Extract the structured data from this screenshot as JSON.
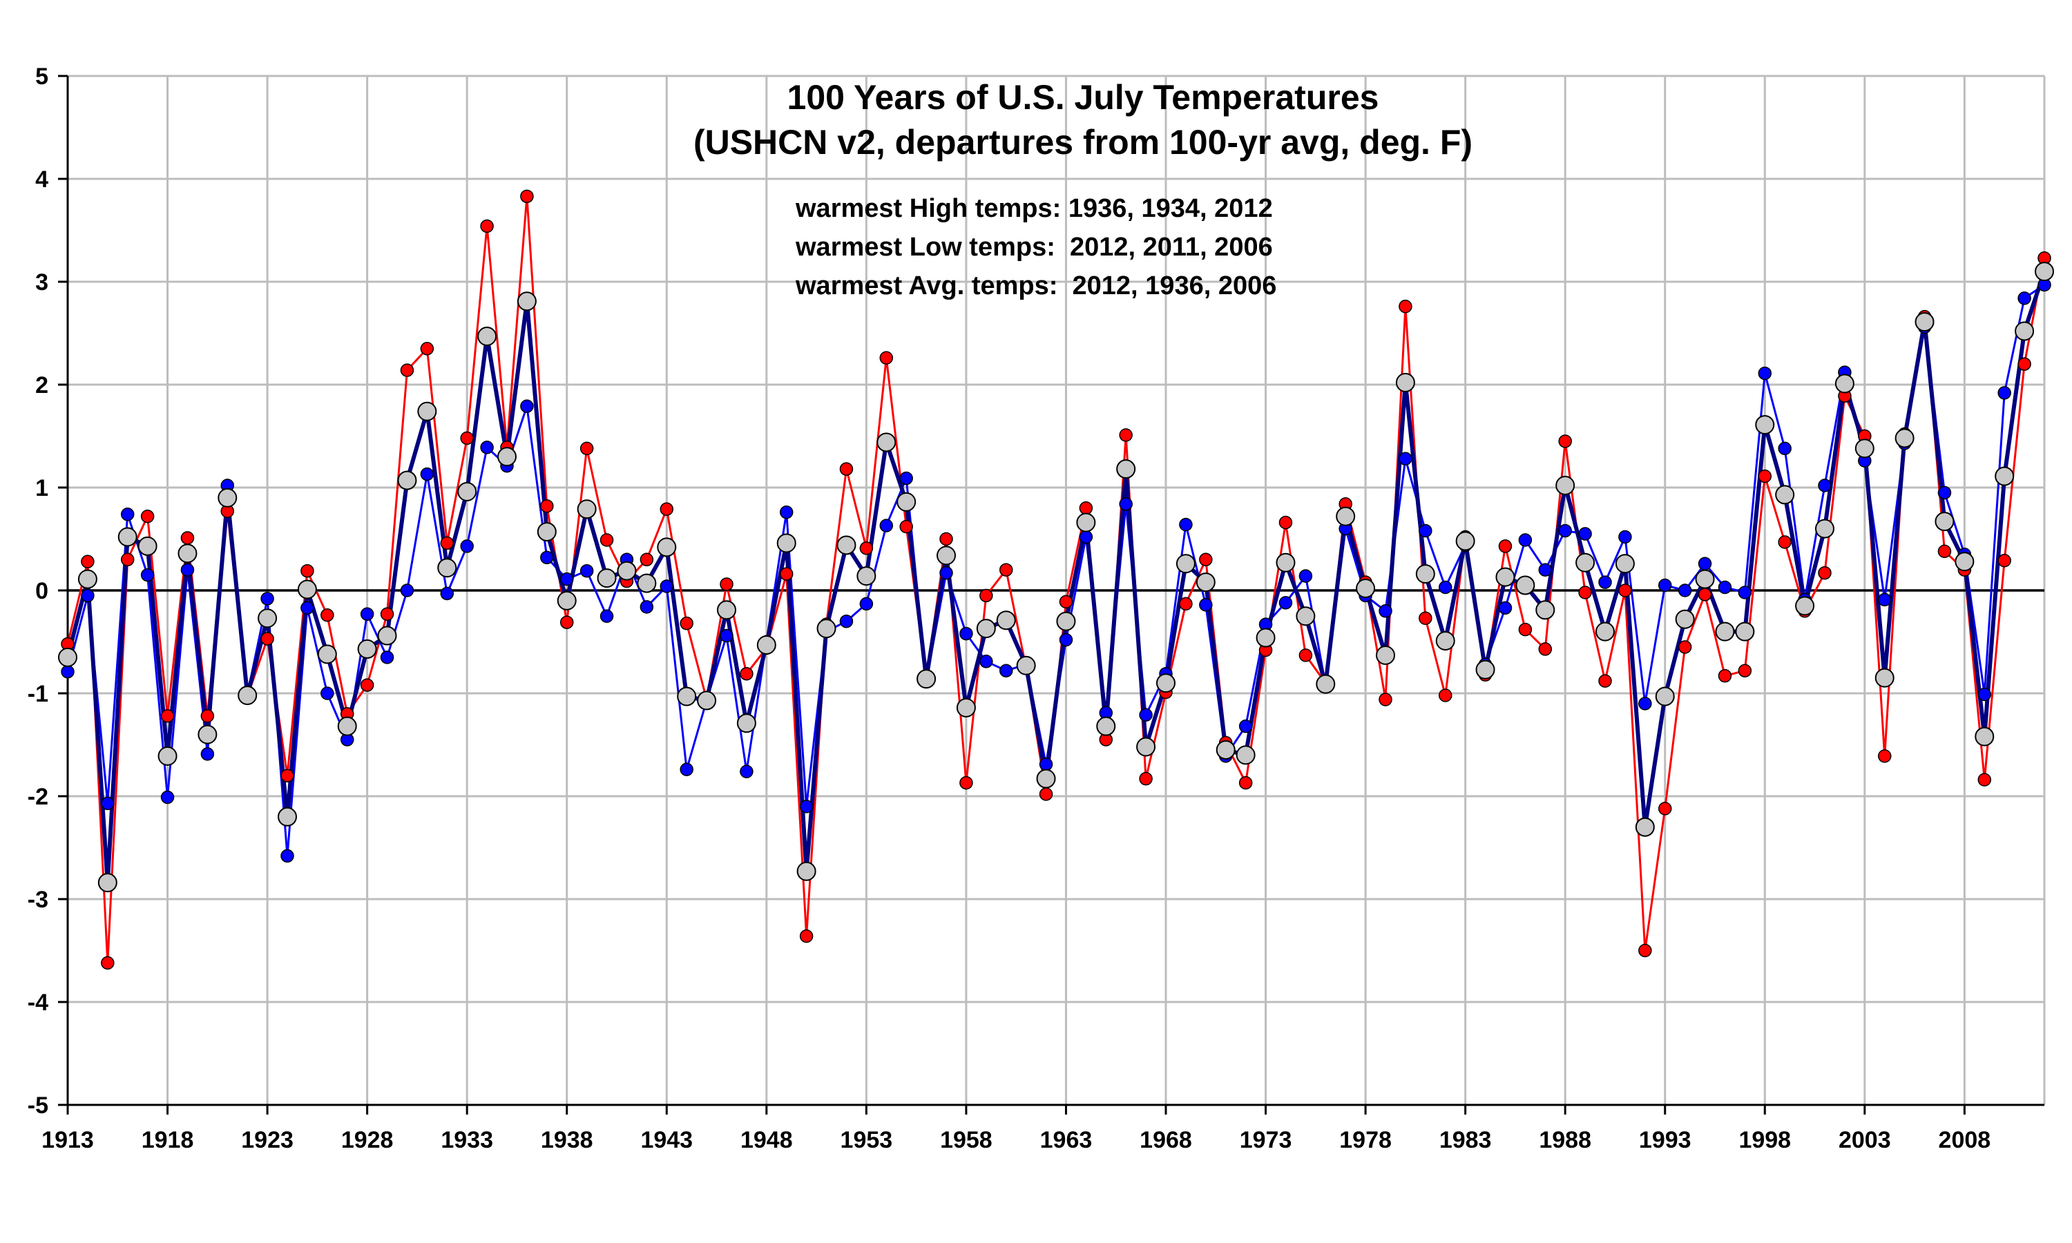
{
  "chart_data": {
    "type": "line",
    "title": "100 Years of U.S. July Temperatures",
    "subtitle": "(USHCN v2, departures from 100-yr avg, deg. F)",
    "annotations": [
      "warmest High temps: 1936, 1934, 2012",
      "warmest Low temps:  2012, 2011, 2006",
      "warmest Avg. temps:  2012, 1936, 2006"
    ],
    "xlabel": "",
    "ylabel": "",
    "xlim": [
      1913,
      2012
    ],
    "ylim": [
      -5,
      5
    ],
    "x_ticks": [
      1913,
      1918,
      1923,
      1928,
      1933,
      1938,
      1943,
      1948,
      1953,
      1958,
      1963,
      1968,
      1973,
      1978,
      1983,
      1988,
      1993,
      1998,
      2003,
      2008
    ],
    "y_ticks": [
      -5,
      -4,
      -3,
      -2,
      -1,
      0,
      1,
      2,
      3,
      4,
      5
    ],
    "grid": true,
    "zero_line": true,
    "x": [
      1913,
      1914,
      1915,
      1916,
      1917,
      1918,
      1919,
      1920,
      1921,
      1922,
      1923,
      1924,
      1925,
      1926,
      1927,
      1928,
      1929,
      1930,
      1931,
      1932,
      1933,
      1934,
      1935,
      1936,
      1937,
      1938,
      1939,
      1940,
      1941,
      1942,
      1943,
      1944,
      1945,
      1946,
      1947,
      1948,
      1949,
      1950,
      1951,
      1952,
      1953,
      1954,
      1955,
      1956,
      1957,
      1958,
      1959,
      1960,
      1961,
      1962,
      1963,
      1964,
      1965,
      1966,
      1967,
      1968,
      1969,
      1970,
      1971,
      1972,
      1973,
      1974,
      1975,
      1976,
      1977,
      1978,
      1979,
      1980,
      1981,
      1982,
      1983,
      1984,
      1985,
      1986,
      1987,
      1988,
      1989,
      1990,
      1991,
      1992,
      1993,
      1994,
      1995,
      1996,
      1997,
      1998,
      1999,
      2000,
      2001,
      2002,
      2003,
      2004,
      2005,
      2006,
      2007,
      2008,
      2009,
      2010,
      2011,
      2012
    ],
    "series": [
      {
        "color": "#ff0000",
        "values": [
          -0.52,
          0.28,
          -3.62,
          0.3,
          0.72,
          -1.22,
          0.51,
          -1.22,
          0.77,
          -1.03,
          -0.47,
          -1.8,
          0.19,
          -0.24,
          -1.2,
          -0.92,
          -0.23,
          2.14,
          2.35,
          0.46,
          1.48,
          3.54,
          1.39,
          3.83,
          0.82,
          -0.31,
          1.38,
          0.49,
          0.09,
          0.3,
          0.79,
          -0.32,
          -1.06,
          0.06,
          -0.81,
          -0.56,
          0.16,
          -3.36,
          -0.33,
          1.18,
          0.41,
          2.26,
          0.62,
          -0.84,
          0.5,
          -1.87,
          -0.05,
          0.2,
          -0.75,
          -1.98,
          -0.11,
          0.8,
          -1.45,
          1.51,
          -1.83,
          -0.99,
          -0.13,
          0.3,
          -1.48,
          -1.87,
          -0.58,
          0.66,
          -0.63,
          -0.9,
          0.84,
          0.08,
          -1.06,
          2.76,
          -0.27,
          -1.02,
          0.52,
          -0.82,
          0.43,
          -0.38,
          -0.57,
          1.45,
          -0.02,
          -0.88,
          0.0,
          -3.5,
          -2.12,
          -0.55,
          -0.04,
          -0.83,
          -0.78,
          1.11,
          0.47,
          -0.2,
          0.17,
          1.89,
          1.5,
          -1.61,
          1.52,
          2.66,
          0.38,
          0.2,
          -1.84,
          0.29,
          2.2,
          3.23
        ]
      },
      {
        "color": "#0000ff",
        "values": [
          -0.79,
          -0.05,
          -2.07,
          0.74,
          0.15,
          -2.01,
          0.2,
          -1.59,
          1.02,
          -1.01,
          -0.08,
          -2.58,
          -0.17,
          -1.0,
          -1.45,
          -0.23,
          -0.65,
          0.0,
          1.13,
          -0.03,
          0.43,
          1.39,
          1.21,
          1.79,
          0.32,
          0.11,
          0.19,
          -0.25,
          0.3,
          -0.16,
          0.04,
          -1.74,
          -1.07,
          -0.44,
          -1.76,
          -0.5,
          0.76,
          -2.1,
          -0.4,
          -0.3,
          -0.13,
          0.63,
          1.09,
          -0.88,
          0.17,
          -0.42,
          -0.69,
          -0.78,
          -0.72,
          -1.69,
          -0.48,
          0.52,
          -1.19,
          0.84,
          -1.21,
          -0.81,
          0.64,
          -0.14,
          -1.61,
          -1.32,
          -0.33,
          -0.12,
          0.14,
          -0.92,
          0.6,
          -0.05,
          -0.2,
          1.28,
          0.58,
          0.03,
          0.44,
          -0.72,
          -0.17,
          0.49,
          0.2,
          0.58,
          0.55,
          0.08,
          0.52,
          -1.1,
          0.05,
          0.0,
          0.26,
          0.03,
          -0.02,
          2.11,
          1.38,
          -0.09,
          1.02,
          2.12,
          1.26,
          -0.09,
          1.43,
          2.56,
          0.95,
          0.35,
          -1.01,
          1.92,
          2.84,
          2.97
        ]
      },
      {
        "color": "#c8c8c8",
        "values": [
          -0.65,
          0.11,
          -2.84,
          0.52,
          0.43,
          -1.61,
          0.36,
          -1.4,
          0.9,
          -1.02,
          -0.27,
          -2.2,
          0.01,
          -0.62,
          -1.32,
          -0.57,
          -0.44,
          1.07,
          1.74,
          0.22,
          0.96,
          2.47,
          1.3,
          2.81,
          0.57,
          -0.1,
          0.79,
          0.12,
          0.19,
          0.07,
          0.42,
          -1.03,
          -1.07,
          -0.19,
          -1.29,
          -0.53,
          0.46,
          -2.73,
          -0.37,
          0.44,
          0.14,
          1.44,
          0.86,
          -0.86,
          0.34,
          -1.14,
          -0.37,
          -0.29,
          -0.73,
          -1.83,
          -0.3,
          0.66,
          -1.32,
          1.18,
          -1.52,
          -0.9,
          0.26,
          0.08,
          -1.55,
          -1.6,
          -0.46,
          0.27,
          -0.25,
          -0.91,
          0.72,
          0.02,
          -0.63,
          2.02,
          0.16,
          -0.49,
          0.48,
          -0.77,
          0.13,
          0.05,
          -0.19,
          1.02,
          0.27,
          -0.4,
          0.26,
          -2.3,
          -1.03,
          -0.28,
          0.11,
          -0.4,
          -0.4,
          1.61,
          0.93,
          -0.15,
          0.6,
          2.01,
          1.38,
          -0.85,
          1.48,
          2.61,
          0.67,
          0.28,
          -1.42,
          1.11,
          2.52,
          3.1
        ]
      }
    ]
  }
}
